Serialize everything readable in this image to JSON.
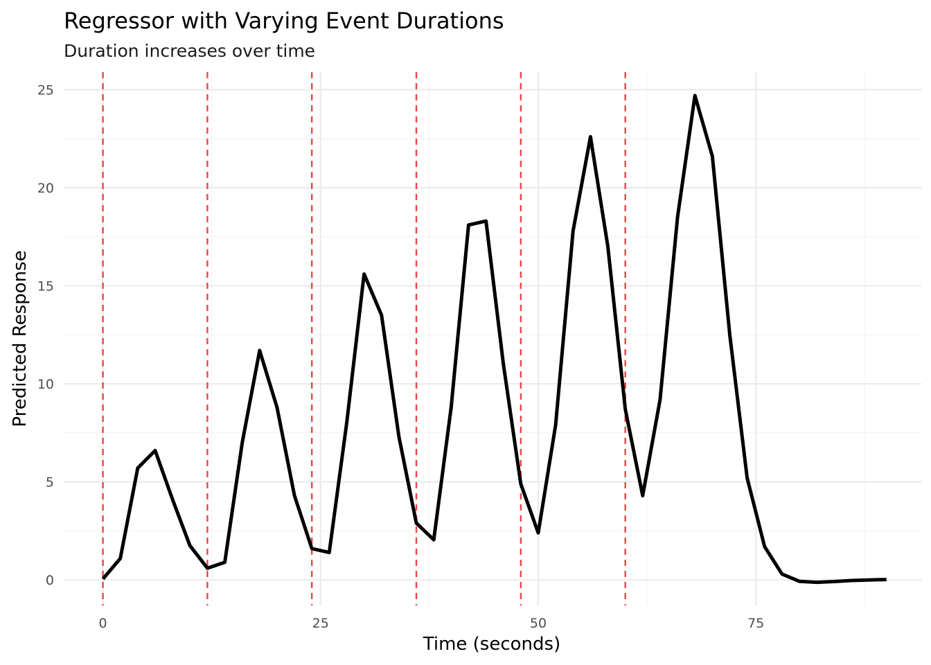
{
  "chart_data": {
    "type": "line",
    "title": "Regressor with Varying Event Durations",
    "subtitle": "Duration increases over time",
    "xlabel": "Time (seconds)",
    "ylabel": "Predicted Response",
    "xlim": [
      -4.5,
      94
    ],
    "ylim": [
      -1.3,
      25.9
    ],
    "x_ticks": [
      0,
      25,
      50,
      75
    ],
    "y_ticks": [
      0,
      5,
      10,
      15,
      20,
      25
    ],
    "x_tick_labels": [
      "0",
      "25",
      "50",
      "75"
    ],
    "y_tick_labels": [
      "0",
      "5",
      "10",
      "15",
      "20",
      "25"
    ],
    "grid": true,
    "event_onsets": [
      0,
      12,
      24,
      36,
      48,
      60
    ],
    "event_line_color": "#ee4444",
    "series": [
      {
        "color": "#000000",
        "x": [
          0,
          2,
          4,
          6,
          8,
          10,
          12,
          14,
          16,
          18,
          20,
          22,
          24,
          26,
          28,
          30,
          32,
          34,
          36,
          38,
          40,
          42,
          44,
          46,
          48,
          50,
          52,
          54,
          56,
          58,
          60,
          62,
          64,
          66,
          68,
          70,
          72,
          74,
          76,
          78,
          80,
          82,
          84,
          86,
          88,
          90
        ],
        "y": [
          0.05,
          1.1,
          5.7,
          6.6,
          4.1,
          1.75,
          0.6,
          0.9,
          7.0,
          11.7,
          8.8,
          4.3,
          1.6,
          1.4,
          8.0,
          15.6,
          13.5,
          7.3,
          2.9,
          2.05,
          8.8,
          18.1,
          18.3,
          11.0,
          4.9,
          2.4,
          7.9,
          17.8,
          22.6,
          17.0,
          8.7,
          4.3,
          9.2,
          18.5,
          24.7,
          21.6,
          12.5,
          5.2,
          1.7,
          0.3,
          -0.07,
          -0.12,
          -0.08,
          -0.03,
          0.0,
          0.02
        ]
      }
    ]
  }
}
